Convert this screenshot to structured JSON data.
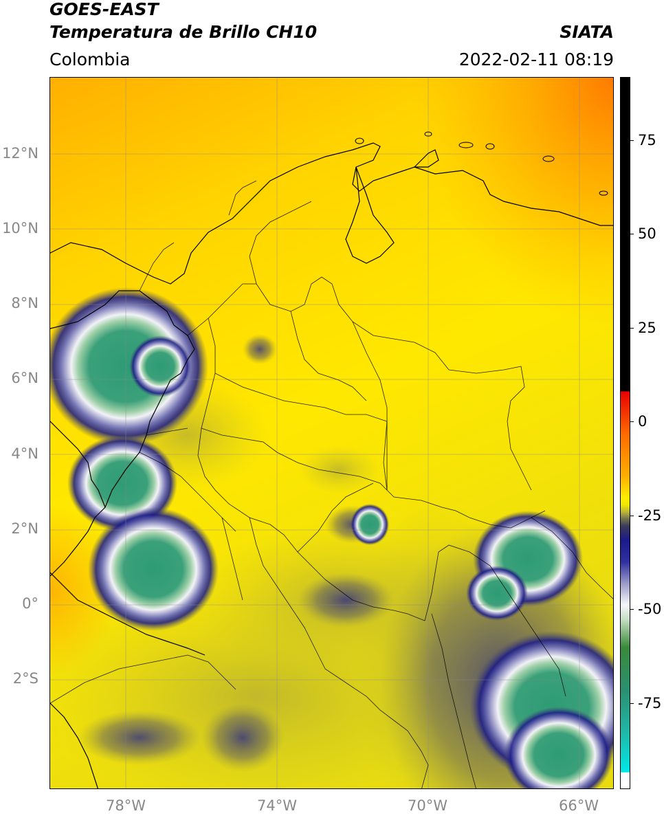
{
  "header": {
    "satellite": "GOES-EAST",
    "product": "Temperatura de Brillo CH10",
    "organization": "SIATA",
    "region": "Colombia",
    "timestamp": "2022-02-11 08:19"
  },
  "map": {
    "lon_range": [
      -80,
      -65.1
    ],
    "lat_range": [
      -4.9,
      14.0
    ],
    "lat_ticks": [
      {
        "value": 12,
        "label": "12°N"
      },
      {
        "value": 10,
        "label": "10°N"
      },
      {
        "value": 8,
        "label": "8°N"
      },
      {
        "value": 6,
        "label": "6°N"
      },
      {
        "value": 4,
        "label": "4°N"
      },
      {
        "value": 2,
        "label": "2°N"
      },
      {
        "value": 0,
        "label": "0°"
      },
      {
        "value": -2,
        "label": "2°S"
      }
    ],
    "lon_ticks": [
      {
        "value": -78,
        "label": "78°W"
      },
      {
        "value": -74,
        "label": "74°W"
      },
      {
        "value": -70,
        "label": "70°W"
      },
      {
        "value": -66,
        "label": "66°W"
      }
    ],
    "grid": true
  },
  "colorbar": {
    "range": [
      -100,
      90
    ],
    "ticks": [
      {
        "value": 75,
        "label": "75"
      },
      {
        "value": 50,
        "label": "50"
      },
      {
        "value": 25,
        "label": "25"
      },
      {
        "value": 0,
        "label": "0"
      },
      {
        "value": -25,
        "label": "-25"
      },
      {
        "value": -50,
        "label": "-50"
      },
      {
        "value": -75,
        "label": "-75"
      }
    ]
  },
  "colors": {
    "warm_orange": "#ff8000",
    "mid_yellow": "#ffee00",
    "olive": "#c8c228",
    "deep_blue": "#1a1a8c",
    "cloud_white": "#eef0f4",
    "cold_green": "#2e9c6e",
    "teal": "#2ab8a0",
    "cyan": "#00e8e8",
    "black": "#000000"
  }
}
